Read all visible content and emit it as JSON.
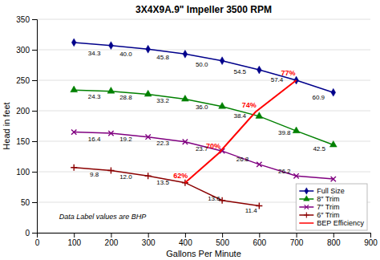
{
  "chart_data": {
    "type": "line",
    "title": "3X4X9A.9\" Impeller 3500 RPM",
    "xlabel": "Gallons Per Minute",
    "ylabel": "Head in feet",
    "xlim": [
      0,
      900
    ],
    "ylim": [
      0,
      350
    ],
    "xticks": [
      0,
      100,
      200,
      300,
      400,
      500,
      600,
      700,
      800,
      900
    ],
    "yticks": [
      0,
      50,
      100,
      150,
      200,
      250,
      300,
      350
    ],
    "grid": true,
    "legend": "lower right",
    "annotations": [
      {
        "text": "Data Label values are BHP",
        "x": 60,
        "y": 22
      }
    ],
    "series": [
      {
        "name": "Full Size",
        "color": "#00008B",
        "marker": "diamond",
        "x": [
          100,
          200,
          300,
          400,
          500,
          600,
          700,
          800
        ],
        "values": [
          312,
          307,
          301,
          293,
          282,
          267,
          250,
          230
        ],
        "label_values": [
          34.3,
          40.0,
          45.8,
          50.0,
          54.5,
          57.4,
          60.9
        ],
        "labels": [
          "34.3",
          "40.0",
          "45.8",
          "50.0",
          "54.5",
          "57.4",
          "60.9"
        ],
        "label_x": [
          155,
          240,
          340,
          445,
          548,
          648,
          760
        ],
        "label_y": [
          298,
          297,
          291,
          280,
          268,
          255,
          226
        ]
      },
      {
        "name": "8″ Trim",
        "color": "#008000",
        "marker": "triangle",
        "x": [
          100,
          200,
          300,
          400,
          500,
          600,
          700,
          800
        ],
        "values": [
          234,
          232,
          227,
          219,
          207,
          191,
          167,
          144
        ],
        "label_values": [
          24.3,
          28.8,
          33.2,
          36.0,
          38.4,
          39.8,
          42.5
        ],
        "labels": [
          "24.3",
          "28.8",
          "33.2",
          "36.0",
          "38.4",
          "39.8",
          "42.5"
        ],
        "label_x": [
          155,
          240,
          340,
          445,
          548,
          668,
          762
        ],
        "label_y": [
          227,
          226,
          221,
          210,
          196,
          168,
          141
        ]
      },
      {
        "name": "7″ Trim",
        "color": "#800080",
        "marker": "x",
        "x": [
          100,
          200,
          300,
          400,
          500,
          600,
          700,
          800
        ],
        "values": [
          165,
          163,
          157,
          149,
          134,
          112,
          93,
          88
        ],
        "label_values": [
          16.4,
          19.2,
          22.3,
          23.7,
          26.8,
          26.2
        ],
        "labels": [
          "16.4",
          "19.2",
          "22.3",
          "23.7",
          "26.8",
          "26.2"
        ],
        "label_x": [
          155,
          240,
          340,
          445,
          555,
          668
        ],
        "label_y": [
          158,
          157,
          151,
          141,
          125,
          105
        ]
      },
      {
        "name": "6″ Trim",
        "color": "#8B0000",
        "marker": "plus",
        "x": [
          100,
          200,
          300,
          400,
          500,
          600
        ],
        "values": [
          107,
          102,
          93,
          82,
          53,
          44
        ],
        "label_values": [
          9.8,
          12.0,
          13.5,
          13.6,
          11.4
        ],
        "labels": [
          "9.8",
          "12.0",
          "13.5",
          "13.6",
          "11.4"
        ],
        "label_x": [
          155,
          240,
          340,
          478,
          578
        ],
        "label_y": [
          99,
          95,
          86,
          60,
          40
        ]
      },
      {
        "name": "BEP Efficiency",
        "color": "#FF0000",
        "marker": "none",
        "x": [
          400,
          490,
          590,
          700
        ],
        "values": [
          82,
          130,
          198,
          250
        ],
        "label_values": [
          62,
          70,
          74,
          77
        ],
        "labels": [
          "62%",
          "70%",
          "74%",
          "77%"
        ],
        "label_x": [
          388,
          476,
          573,
          678
        ],
        "label_y": [
          89,
          138,
          205,
          258
        ]
      }
    ]
  }
}
